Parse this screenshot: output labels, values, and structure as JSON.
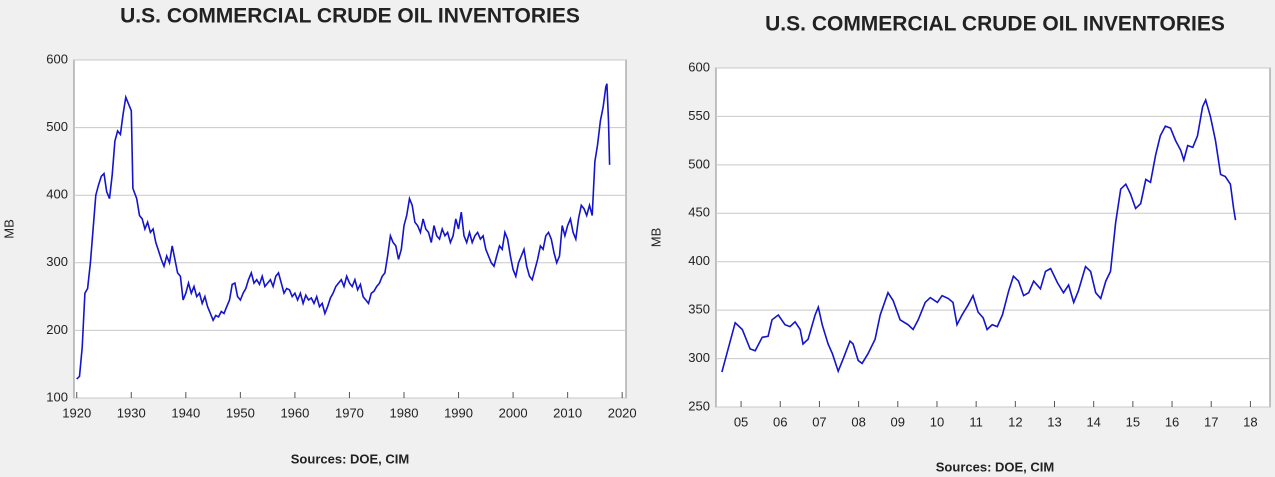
{
  "chart_data": [
    {
      "type": "line",
      "title": "U.S. COMMERCIAL CRUDE OIL INVENTORIES",
      "y_label": "MB",
      "source": "Sources:  DOE, CIM",
      "xlim": [
        1919.5,
        2020.7
      ],
      "xticks": [
        1920,
        1930,
        1940,
        1950,
        1960,
        1970,
        1980,
        1990,
        2000,
        2010,
        2020
      ],
      "ylim": [
        100,
        600
      ],
      "yticks": [
        100,
        200,
        300,
        400,
        500,
        600
      ],
      "grid": true,
      "x": [
        1920,
        1920.5,
        1921,
        1921.5,
        1922,
        1922.5,
        1923,
        1923.5,
        1924,
        1924.5,
        1925,
        1925.5,
        1926,
        1926.5,
        1927,
        1927.5,
        1928,
        1928.5,
        1929,
        1929.5,
        1930,
        1930.3,
        1931,
        1931.5,
        1932,
        1932.5,
        1933,
        1933.5,
        1934,
        1934.5,
        1935,
        1935.5,
        1936,
        1936.5,
        1937,
        1937.5,
        1938,
        1938.5,
        1939,
        1939.5,
        1940,
        1940.5,
        1941,
        1941.5,
        1942,
        1942.5,
        1943,
        1943.5,
        1944,
        1944.5,
        1945,
        1945.5,
        1946,
        1946.5,
        1947,
        1947.5,
        1948,
        1948.5,
        1949,
        1949.5,
        1950,
        1950.5,
        1951,
        1951.5,
        1952,
        1952.5,
        1953,
        1953.5,
        1954,
        1954.5,
        1955,
        1955.5,
        1956,
        1956.5,
        1957,
        1957.5,
        1958,
        1958.5,
        1959,
        1959.5,
        1960,
        1960.5,
        1961,
        1961.5,
        1962,
        1962.5,
        1963,
        1963.5,
        1964,
        1964.5,
        1965,
        1965.5,
        1966,
        1966.5,
        1967,
        1967.5,
        1968,
        1968.5,
        1969,
        1969.5,
        1970,
        1970.5,
        1971,
        1971.5,
        1972,
        1972.5,
        1973,
        1973.5,
        1974,
        1974.5,
        1975,
        1975.5,
        1976,
        1976.5,
        1977,
        1977.5,
        1978,
        1978.5,
        1979,
        1979.5,
        1980,
        1980.5,
        1981,
        1981.5,
        1982,
        1982.5,
        1983,
        1983.5,
        1984,
        1984.5,
        1985,
        1985.5,
        1986,
        1986.5,
        1987,
        1987.5,
        1988,
        1988.5,
        1989,
        1989.5,
        1990,
        1990.5,
        1991,
        1991.5,
        1992,
        1992.5,
        1993,
        1993.5,
        1994,
        1994.5,
        1995,
        1995.5,
        1996,
        1996.5,
        1997,
        1997.5,
        1998,
        1998.5,
        1999,
        1999.5,
        2000,
        2000.5,
        2001,
        2001.5,
        2002,
        2002.5,
        2003,
        2003.5,
        2004,
        2004.5,
        2005,
        2005.5,
        2006,
        2006.5,
        2007,
        2007.5,
        2008,
        2008.5,
        2009,
        2009.5,
        2010,
        2010.5,
        2011,
        2011.5,
        2012,
        2012.5,
        2013,
        2013.5,
        2014,
        2014.5,
        2015,
        2015.5,
        2016,
        2016.5,
        2017,
        2017.2,
        2017.5,
        2017.7
      ],
      "series": [
        {
          "name": "Inventories",
          "color": "#1414cc",
          "values": [
            128,
            132,
            175,
            255,
            262,
            300,
            350,
            400,
            415,
            428,
            432,
            405,
            395,
            430,
            480,
            495,
            490,
            520,
            545,
            535,
            525,
            410,
            395,
            370,
            365,
            350,
            360,
            345,
            350,
            330,
            318,
            305,
            295,
            310,
            300,
            325,
            305,
            285,
            280,
            245,
            255,
            270,
            255,
            265,
            250,
            255,
            240,
            250,
            235,
            225,
            215,
            222,
            220,
            228,
            225,
            235,
            245,
            268,
            270,
            250,
            245,
            255,
            262,
            275,
            285,
            270,
            275,
            268,
            280,
            265,
            270,
            275,
            265,
            280,
            285,
            270,
            255,
            262,
            260,
            250,
            255,
            245,
            255,
            240,
            252,
            245,
            248,
            240,
            250,
            235,
            240,
            225,
            235,
            248,
            255,
            265,
            270,
            275,
            265,
            280,
            270,
            265,
            275,
            260,
            268,
            250,
            245,
            240,
            255,
            258,
            265,
            270,
            280,
            285,
            310,
            340,
            330,
            325,
            305,
            320,
            355,
            370,
            395,
            385,
            360,
            355,
            345,
            365,
            350,
            345,
            330,
            355,
            340,
            335,
            350,
            340,
            345,
            330,
            340,
            365,
            350,
            375,
            340,
            330,
            345,
            330,
            340,
            345,
            335,
            340,
            320,
            310,
            300,
            295,
            310,
            325,
            320,
            345,
            335,
            310,
            290,
            280,
            300,
            310,
            320,
            295,
            280,
            275,
            290,
            305,
            325,
            320,
            340,
            345,
            335,
            315,
            300,
            310,
            355,
            340,
            355,
            365,
            345,
            335,
            365,
            385,
            380,
            370,
            385,
            370,
            450,
            475,
            510,
            530,
            560,
            565,
            510,
            445
          ]
        }
      ]
    },
    {
      "type": "line",
      "title": "U.S. COMMERCIAL CRUDE OIL INVENTORIES",
      "y_label": "MB",
      "source": "Sources:  DOE, CIM",
      "xlim": [
        2004.86,
        2019.0
      ],
      "xticks": [
        {
          "value": 2005.5,
          "label": "05"
        },
        {
          "value": 2006.5,
          "label": "06"
        },
        {
          "value": 2007.5,
          "label": "07"
        },
        {
          "value": 2008.5,
          "label": "08"
        },
        {
          "value": 2009.5,
          "label": "09"
        },
        {
          "value": 2010.5,
          "label": "10"
        },
        {
          "value": 2011.5,
          "label": "11"
        },
        {
          "value": 2012.5,
          "label": "12"
        },
        {
          "value": 2013.5,
          "label": "13"
        },
        {
          "value": 2014.5,
          "label": "14"
        },
        {
          "value": 2015.5,
          "label": "15"
        },
        {
          "value": 2016.5,
          "label": "16"
        },
        {
          "value": 2017.5,
          "label": "17"
        },
        {
          "value": 2018.5,
          "label": "18"
        }
      ],
      "ylim": [
        250,
        600
      ],
      "yticks": [
        250,
        300,
        350,
        400,
        450,
        500,
        550,
        600
      ],
      "grid": true,
      "x": [
        2005.01,
        2005.35,
        2005.53,
        2005.73,
        2005.86,
        2006.04,
        2006.19,
        2006.29,
        2006.45,
        2006.62,
        2006.75,
        2006.88,
        2007.01,
        2007.08,
        2007.21,
        2007.39,
        2007.47,
        2007.57,
        2007.72,
        2007.83,
        2007.98,
        2008.11,
        2008.28,
        2008.36,
        2008.49,
        2008.59,
        2008.74,
        2008.92,
        2009.05,
        2009.25,
        2009.38,
        2009.56,
        2009.76,
        2009.89,
        2010.02,
        2010.2,
        2010.33,
        2010.51,
        2010.63,
        2010.79,
        2010.91,
        2011.01,
        2011.14,
        2011.29,
        2011.42,
        2011.55,
        2011.68,
        2011.78,
        2011.91,
        2012.04,
        2012.17,
        2012.33,
        2012.45,
        2012.58,
        2012.71,
        2012.84,
        2012.97,
        2013.14,
        2013.27,
        2013.4,
        2013.58,
        2013.73,
        2013.86,
        2013.99,
        2014.11,
        2014.29,
        2014.42,
        2014.55,
        2014.68,
        2014.81,
        2014.93,
        2015.06,
        2015.19,
        2015.32,
        2015.44,
        2015.57,
        2015.7,
        2015.83,
        2015.95,
        2016.08,
        2016.2,
        2016.33,
        2016.46,
        2016.59,
        2016.72,
        2016.8,
        2016.9,
        2017.03,
        2017.15,
        2017.28,
        2017.36,
        2017.48,
        2017.61,
        2017.74,
        2017.86,
        2017.99,
        2018.07,
        2018.12
      ],
      "series": [
        {
          "name": "Inventories",
          "color": "#1414cc",
          "values": [
            286,
            337,
            330,
            310,
            308,
            322,
            323,
            340,
            345,
            335,
            333,
            338,
            330,
            315,
            320,
            345,
            353,
            335,
            315,
            305,
            287,
            300,
            318,
            315,
            298,
            295,
            305,
            320,
            345,
            368,
            360,
            340,
            335,
            330,
            340,
            358,
            363,
            358,
            365,
            362,
            358,
            335,
            345,
            355,
            365,
            348,
            342,
            330,
            335,
            333,
            345,
            370,
            385,
            380,
            365,
            368,
            380,
            372,
            390,
            393,
            378,
            368,
            376,
            358,
            370,
            395,
            390,
            368,
            362,
            380,
            390,
            440,
            475,
            480,
            470,
            455,
            460,
            485,
            482,
            510,
            530,
            540,
            538,
            525,
            515,
            505,
            520,
            518,
            530,
            560,
            567,
            550,
            525,
            490,
            488,
            480,
            455,
            443
          ]
        }
      ]
    }
  ]
}
